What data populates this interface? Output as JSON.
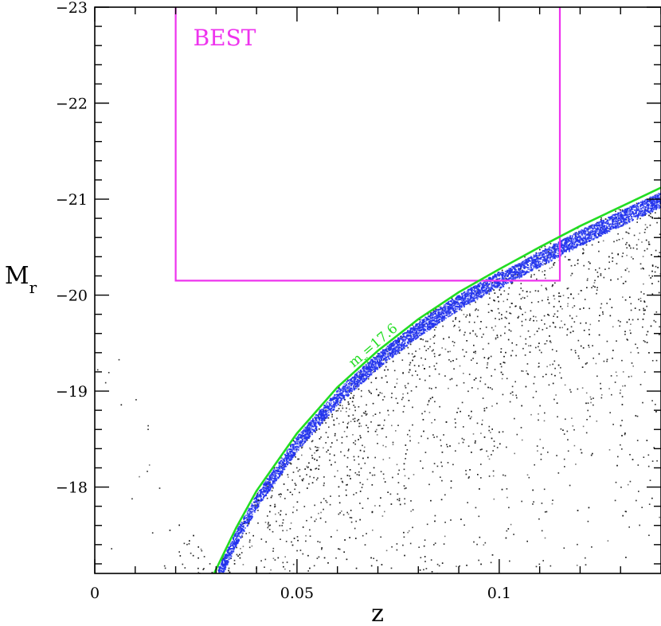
{
  "chart_data": {
    "type": "scatter",
    "title": "",
    "xlabel": "z",
    "ylabel": {
      "main": "M",
      "sub": "r"
    },
    "xlim": [
      0,
      0.14
    ],
    "ylim": [
      -17.1,
      -23.0
    ],
    "y_inverted": true,
    "x_ticks": [
      {
        "value": 0,
        "label": "0"
      },
      {
        "value": 0.05,
        "label": "0.05"
      },
      {
        "value": 0.1,
        "label": "0.1"
      }
    ],
    "y_ticks": [
      {
        "value": -18,
        "label": "−18"
      },
      {
        "value": -19,
        "label": "−19"
      },
      {
        "value": -20,
        "label": "−20"
      },
      {
        "value": -21,
        "label": "−21"
      },
      {
        "value": -22,
        "label": "−22"
      },
      {
        "value": -23,
        "label": "−23"
      }
    ],
    "series": [
      {
        "color": "#000000",
        "description_kind": "galaxy density cloud"
      },
      {
        "color": "#2233ee",
        "description_kind": "faint band below limit"
      }
    ],
    "limit_curve": {
      "label_main": "m",
      "label_sub": "r",
      "label_rest": "=17.6",
      "apparent_mag_limit": 17.6,
      "color": "#22dd22",
      "points": [
        [
          0.0295,
          -17.1
        ],
        [
          0.035,
          -17.58
        ],
        [
          0.04,
          -17.96
        ],
        [
          0.05,
          -18.56
        ],
        [
          0.06,
          -19.04
        ],
        [
          0.07,
          -19.42
        ],
        [
          0.08,
          -19.75
        ],
        [
          0.09,
          -20.03
        ],
        [
          0.1,
          -20.27
        ],
        [
          0.11,
          -20.5
        ],
        [
          0.12,
          -20.72
        ],
        [
          0.13,
          -20.92
        ],
        [
          0.14,
          -21.12
        ]
      ]
    },
    "selection_box": {
      "label": "BEST",
      "color": "#ee33ee",
      "z_min": 0.02,
      "z_max": 0.115,
      "Mr_faint": -20.15,
      "Mr_bright": -23.0
    },
    "grid": false,
    "legend": "none"
  }
}
